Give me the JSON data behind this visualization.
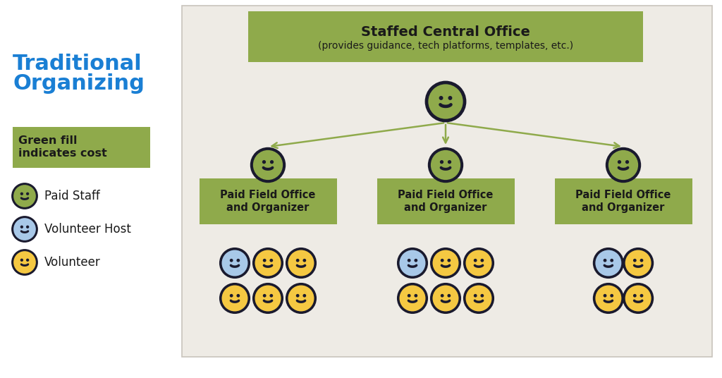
{
  "bg_color": "#eeebe5",
  "green_box_color": "#8faa4b",
  "arrow_color": "#8faa4b",
  "title_text": "Staffed Central Office",
  "subtitle_text": "(provides guidance, tech platforms, templates, etc.)",
  "field_office_text": "Paid Field Office\nand Organizer",
  "left_title_line1": "Traditional",
  "left_title_line2": "Organizing",
  "left_title_color": "#1a7fd4",
  "legend_box_text": "Green fill\nindicates cost",
  "legend_paid_staff": "Paid Staff",
  "legend_volunteer_host": "Volunteer Host",
  "legend_volunteer": "Volunteer",
  "paid_staff_color": "#8faa4b",
  "volunteer_host_color": "#a8c8e8",
  "volunteer_color": "#f5c842",
  "outline_color": "#1a1a2e",
  "white_bg": "#ffffff",
  "panel_border": "#c8c4bc"
}
